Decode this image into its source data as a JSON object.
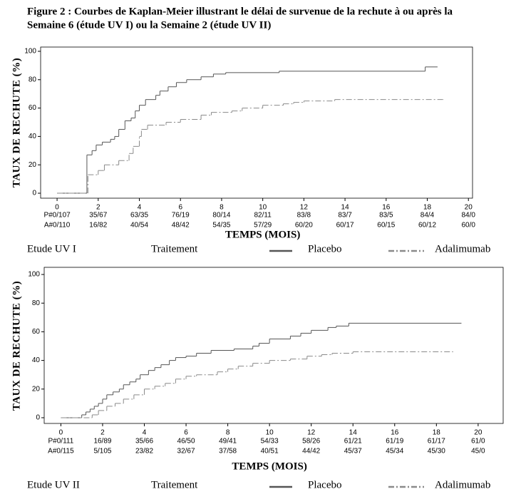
{
  "title_lines": [
    "Figure 2 : Courbes de Kaplan-Meier illustrant le délai de survenue de la rechute à ou après la",
    "Semaine 6 (étude UV I) ou la Semaine 2 (étude UV II)"
  ],
  "chart_data": [
    {
      "type": "line",
      "step": true,
      "y_label": "TAUX DE RECHUTE (%)",
      "x_label": "TEMPS (MOIS)",
      "xlim": [
        -0.8,
        20.2
      ],
      "xticks": [
        0,
        2,
        4,
        6,
        8,
        10,
        12,
        14,
        16,
        18,
        20
      ],
      "ylim": [
        -3.5,
        103
      ],
      "yticks": [
        0,
        20,
        40,
        60,
        80,
        100
      ],
      "study": "Etude UV I",
      "legend_title": "Traitement",
      "series": [
        {
          "name": "Placebo",
          "color": "#555555",
          "line_style": "solid",
          "x": [
            0,
            1.45,
            1.7,
            1.9,
            2.2,
            2.6,
            2.8,
            3.0,
            3.3,
            3.6,
            3.8,
            4.0,
            4.3,
            4.8,
            5.0,
            5.4,
            5.8,
            6.3,
            7.0,
            7.6,
            8.2,
            10.8,
            17.9,
            18.5
          ],
          "values": [
            0,
            27,
            30,
            34,
            36,
            38,
            40,
            45,
            51,
            53,
            58,
            62,
            66,
            69,
            72,
            75,
            78,
            80,
            82,
            84,
            85,
            86,
            89,
            89
          ]
        },
        {
          "name": "Adalimumab",
          "color": "#8a8a8a",
          "line_style": "dashdot",
          "x": [
            0,
            1.5,
            2.0,
            2.3,
            3.0,
            3.5,
            3.7,
            4.0,
            4.1,
            4.4,
            5.3,
            6.0,
            7.0,
            7.5,
            8.5,
            9.0,
            10.0,
            11.0,
            11.5,
            12.0,
            13.5,
            18.8
          ],
          "values": [
            0,
            13,
            16,
            20,
            23,
            28,
            33,
            40,
            45,
            48,
            50,
            52,
            55,
            57,
            58,
            60,
            62,
            63,
            64,
            65,
            66,
            66
          ]
        }
      ],
      "at_risk": [
        {
          "label": "P#0/107",
          "values": [
            "35/67",
            "63/35",
            "76/19",
            "80/14",
            "82/11",
            "83/8",
            "83/7",
            "83/5",
            "84/4",
            "84/0"
          ]
        },
        {
          "label": "A#0/110",
          "values": [
            "16/82",
            "40/54",
            "48/42",
            "54/35",
            "57/29",
            "60/20",
            "60/17",
            "60/15",
            "60/12",
            "60/0"
          ]
        }
      ]
    },
    {
      "type": "line",
      "step": true,
      "y_label": "TAUX DE RECHUTE (%)",
      "x_label": "TEMPS (MOIS)",
      "xlim": [
        -0.8,
        21.2
      ],
      "xticks": [
        0,
        2,
        4,
        6,
        8,
        10,
        12,
        14,
        16,
        18,
        20
      ],
      "ylim": [
        -4,
        105
      ],
      "yticks": [
        0,
        20,
        40,
        60,
        80,
        100
      ],
      "study": "Etude UV II",
      "legend_title": "Traitement",
      "series": [
        {
          "name": "Placebo",
          "color": "#555555",
          "line_style": "solid",
          "x": [
            0,
            1.0,
            1.2,
            1.4,
            1.6,
            1.8,
            2.0,
            2.2,
            2.5,
            2.8,
            3.0,
            3.3,
            3.6,
            3.8,
            4.2,
            4.5,
            4.8,
            5.2,
            5.5,
            6.0,
            6.5,
            7.2,
            8.3,
            9.2,
            9.5,
            10.0,
            11.0,
            11.5,
            12.0,
            12.8,
            13.2,
            13.8,
            19.2
          ],
          "values": [
            0,
            2,
            4,
            6,
            8,
            10,
            13,
            16,
            18,
            20,
            23,
            25,
            27,
            30,
            33,
            35,
            37,
            40,
            42,
            43,
            45,
            47,
            48,
            50,
            52,
            55,
            57,
            59,
            61,
            63,
            64,
            66,
            66
          ]
        },
        {
          "name": "Adalimumab",
          "color": "#8a8a8a",
          "line_style": "dashdot",
          "x": [
            0,
            1.5,
            1.8,
            2.2,
            2.6,
            3.0,
            3.5,
            4.0,
            4.5,
            5.0,
            5.5,
            6.0,
            6.5,
            7.5,
            8.0,
            8.5,
            9.2,
            10.0,
            11.0,
            11.8,
            12.5,
            13.0,
            14.0,
            18.8
          ],
          "values": [
            0,
            2,
            5,
            8,
            10,
            13,
            16,
            20,
            22,
            24,
            27,
            29,
            30,
            32,
            34,
            36,
            38,
            40,
            41,
            43,
            44,
            45,
            46,
            46
          ]
        }
      ],
      "at_risk": [
        {
          "label": "P#0/111",
          "values": [
            "16/89",
            "35/66",
            "46/50",
            "49/41",
            "54/33",
            "58/26",
            "61/21",
            "61/19",
            "61/17",
            "61/0"
          ]
        },
        {
          "label": "A#0/115",
          "values": [
            "5/105",
            "23/82",
            "32/67",
            "37/58",
            "40/51",
            "44/42",
            "45/37",
            "45/34",
            "45/30",
            "45/0"
          ]
        }
      ]
    }
  ]
}
